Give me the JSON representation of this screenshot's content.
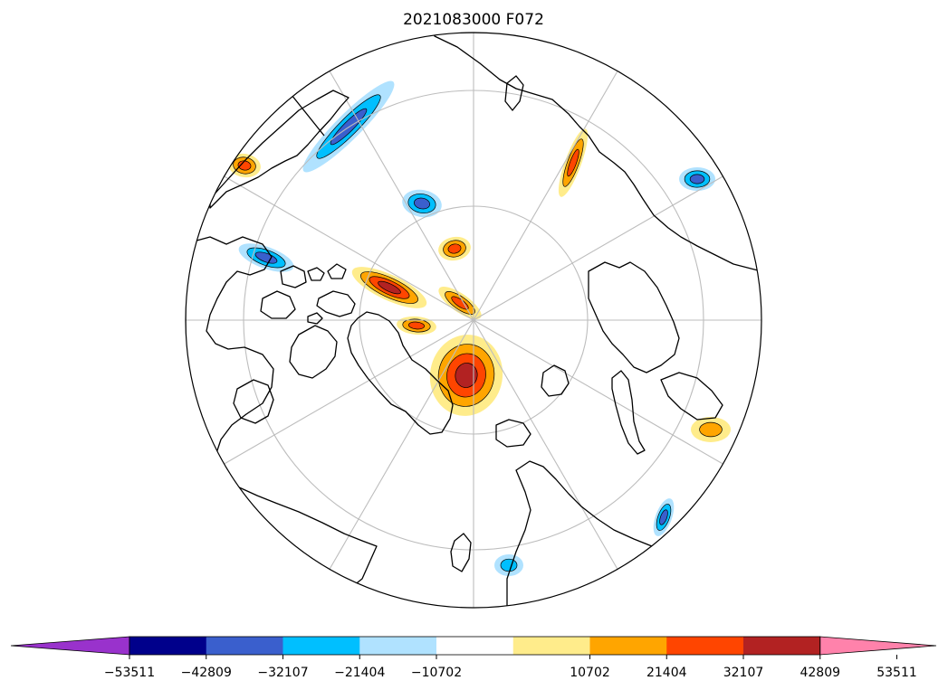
{
  "figure": {
    "title": "2021083000 F072",
    "projection": "north-polar-stereographic",
    "grid_lines": true,
    "coastlines": true
  },
  "colorbar": {
    "orientation": "horizontal",
    "extend": "both",
    "tick_labels": [
      "−53511",
      "−42809",
      "−32107",
      "−21404",
      "−10702",
      "10702",
      "21404",
      "32107",
      "42809",
      "53511"
    ],
    "tick_values": [
      -53511,
      -42809,
      -32107,
      -21404,
      -10702,
      10702,
      21404,
      32107,
      42809,
      53511
    ],
    "colors": [
      "#9932cc",
      "#00008b",
      "#3a5fcd",
      "#00bfff",
      "#b0e2ff",
      "#ffffff",
      "#ffec8b",
      "#ffa500",
      "#ff4500",
      "#b22222",
      "#ff82ab"
    ]
  },
  "anomalies": [
    {
      "name": "central-positive-large",
      "levels": [
        1,
        2,
        3,
        4
      ]
    },
    {
      "name": "pole-positive-streak",
      "levels": [
        1,
        2,
        3
      ]
    },
    {
      "name": "canada-arctic-positive",
      "levels": [
        1,
        2,
        3,
        4
      ]
    },
    {
      "name": "hudson-positive",
      "levels": [
        1,
        2,
        3
      ]
    },
    {
      "name": "alaska-negative-band",
      "levels": [
        -1,
        -2,
        -3
      ]
    },
    {
      "name": "siberia-positive-streak",
      "levels": [
        1,
        2,
        3
      ]
    },
    {
      "name": "europe-positive",
      "levels": [
        1,
        2
      ]
    },
    {
      "name": "scandinavia-negative",
      "levels": [
        -1,
        -2,
        -3
      ]
    },
    {
      "name": "russia-positive",
      "levels": [
        1,
        2,
        3
      ]
    },
    {
      "name": "pacific-negative",
      "levels": [
        -1,
        -2,
        -3
      ]
    },
    {
      "name": "atlantic-negative",
      "levels": [
        -1,
        -2,
        -3
      ]
    },
    {
      "name": "aleutian-negative",
      "levels": [
        -1,
        -2,
        -3
      ]
    },
    {
      "name": "bering-negative",
      "levels": [
        -1,
        -2
      ]
    },
    {
      "name": "gulf-alaska-positive",
      "levels": [
        1,
        2,
        3
      ]
    }
  ]
}
